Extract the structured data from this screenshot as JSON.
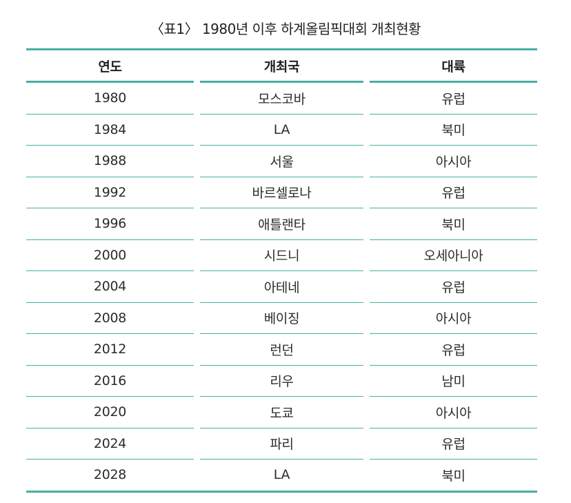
{
  "caption": "〈표1〉 1980년 이후 하계올림픽대회 개최현황",
  "table": {
    "headers": [
      "연도",
      "개최국",
      "대륙"
    ],
    "rows": [
      [
        "1980",
        "모스코바",
        "유럽"
      ],
      [
        "1984",
        "LA",
        "북미"
      ],
      [
        "1988",
        "서울",
        "아시아"
      ],
      [
        "1992",
        "바르셀로나",
        "유럽"
      ],
      [
        "1996",
        "애틀랜타",
        "북미"
      ],
      [
        "2000",
        "시드니",
        "오세아니아"
      ],
      [
        "2004",
        "아테네",
        "유럽"
      ],
      [
        "2008",
        "베이징",
        "아시아"
      ],
      [
        "2012",
        "런던",
        "유럽"
      ],
      [
        "2016",
        "리우",
        "남미"
      ],
      [
        "2020",
        "도쿄",
        "아시아"
      ],
      [
        "2024",
        "파리",
        "유럽"
      ],
      [
        "2028",
        "LA",
        "북미"
      ]
    ]
  },
  "colors": {
    "rule": "#46aea3",
    "text": "#2b2b2b"
  }
}
